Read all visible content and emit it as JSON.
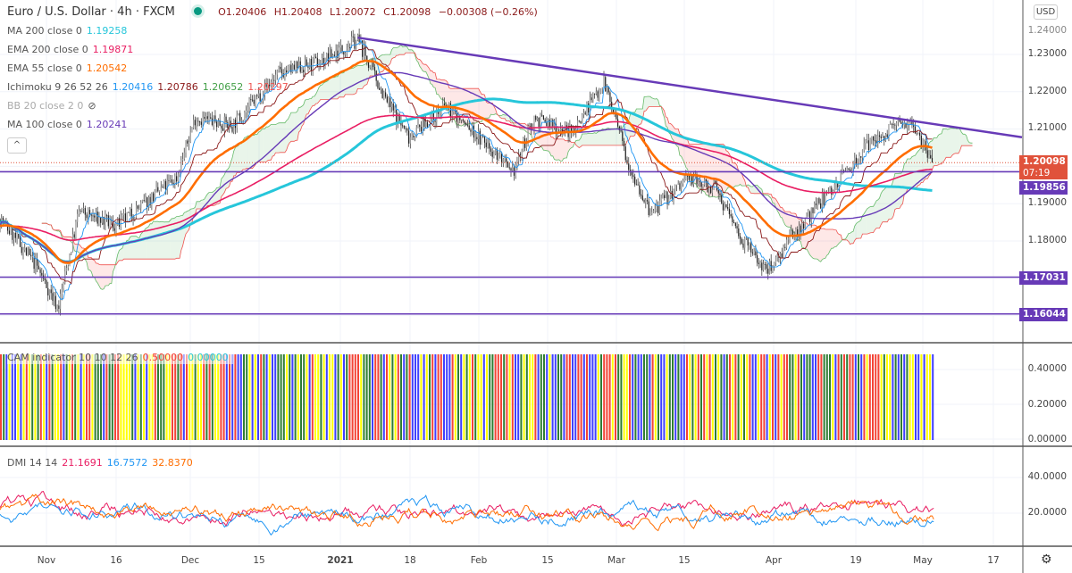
{
  "header": {
    "symbol": "Euro / U.S. Dollar · 4h · FXCM",
    "ohlc": {
      "o": "O1.20406",
      "h": "H1.20408",
      "l": "L1.20072",
      "c": "C1.20098",
      "chg": "−0.00308 (−0.26%)"
    },
    "currency_button": "USD",
    "collapse_button": "^"
  },
  "indicators": [
    {
      "label": "MA 200 close 0",
      "values": [
        "1.19258"
      ],
      "colors": [
        "#26c6da"
      ]
    },
    {
      "label": "EMA 200 close 0",
      "values": [
        "1.19871"
      ],
      "colors": [
        "#e91e63"
      ]
    },
    {
      "label": "EMA 55 close 0",
      "values": [
        "1.20542"
      ],
      "colors": [
        "#ff6d00"
      ]
    },
    {
      "label": "Ichimoku 9 26 52 26",
      "values": [
        "1.20416",
        "1.20786",
        "1.20652",
        "1.20297"
      ],
      "colors": [
        "#2196f3",
        "#8b1a1a",
        "#43a047",
        "#ef5350"
      ]
    },
    {
      "label": "BB 20 close 2 0",
      "values": [],
      "colors": [],
      "hidden": true
    },
    {
      "label": "MA 100 close 0",
      "values": [
        "1.20241"
      ],
      "colors": [
        "#673ab7"
      ]
    }
  ],
  "cam": {
    "label": "CAM indicator 10 10 12 26",
    "v1": "0.50000",
    "v2": "0.00000",
    "ticks": [
      "0.40000",
      "0.20000",
      "0.00000"
    ],
    "colors": [
      "#ffff00",
      "#f44336",
      "#2e7d32",
      "#3f3fff"
    ]
  },
  "dmi": {
    "label": "DMI 14 14",
    "v1": "21.1691",
    "v2": "16.7572",
    "v3": "32.8370",
    "ticks": [
      "40.0000",
      "20.0000"
    ]
  },
  "price_axis": {
    "ticks": [
      "1.24000",
      "1.23000",
      "1.22000",
      "1.21000",
      "1.19000",
      "1.18000"
    ],
    "last_price": "1.20098",
    "countdown": "07:19",
    "levels": [
      "1.19856",
      "1.17031",
      "1.16044"
    ]
  },
  "time_axis": [
    "Nov",
    "16",
    "Dec",
    "15",
    "2021",
    "18",
    "Feb",
    "15",
    "Mar",
    "15",
    "Apr",
    "19",
    "May",
    "17"
  ],
  "chart_data": {
    "type": "candlestick",
    "interval": "4h",
    "price_anchors_day_price": [
      [
        0,
        1.186
      ],
      [
        8,
        1.173
      ],
      [
        12.5,
        1.162
      ],
      [
        17,
        1.188
      ],
      [
        25,
        1.184
      ],
      [
        38,
        1.197
      ],
      [
        42,
        1.213
      ],
      [
        50,
        1.211
      ],
      [
        60,
        1.225
      ],
      [
        69,
        1.228
      ],
      [
        77,
        1.234
      ],
      [
        83,
        1.218
      ],
      [
        88,
        1.208
      ],
      [
        96,
        1.216
      ],
      [
        108,
        1.202
      ],
      [
        110,
        1.197
      ],
      [
        115,
        1.213
      ],
      [
        123,
        1.209
      ],
      [
        130,
        1.223
      ],
      [
        135,
        1.202
      ],
      [
        140,
        1.187
      ],
      [
        148,
        1.197
      ],
      [
        154,
        1.194
      ],
      [
        160,
        1.18
      ],
      [
        165,
        1.172
      ],
      [
        171,
        1.182
      ],
      [
        179,
        1.194
      ],
      [
        187,
        1.206
      ],
      [
        192,
        1.21
      ],
      [
        196,
        1.213
      ],
      [
        201,
        1.201
      ]
    ],
    "trendline": {
      "from": [
        77,
        1.2345
      ],
      "to": [
        220,
        1.2078
      ]
    },
    "levels": [
      1.19856,
      1.17031,
      1.16044
    ],
    "last_price": 1.20098,
    "ylim": [
      1.152,
      1.245
    ]
  }
}
